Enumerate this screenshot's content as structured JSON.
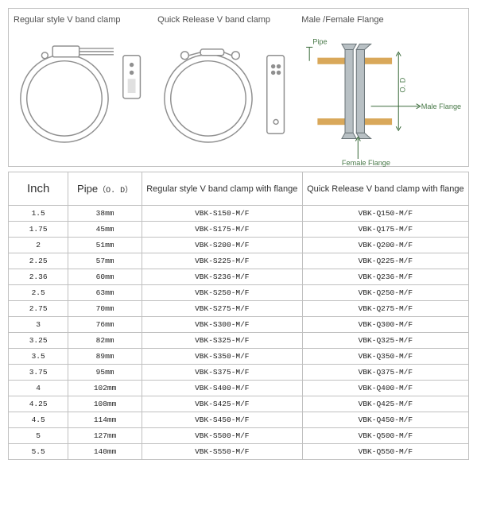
{
  "diagram": {
    "titles": {
      "regular": "Regular style V band clamp",
      "quick": "Quick Release V band clamp",
      "flange": "Male /Female Flange"
    },
    "flange_labels": {
      "pipe": "Pipe",
      "od": "O. D",
      "male": "Male Flange",
      "female": "Female Flange"
    },
    "colors": {
      "stroke": "#909090",
      "label": "#4a7a4a",
      "arrow": "#3b6b3b",
      "pipe": "#d9a85a"
    }
  },
  "table": {
    "headers": {
      "inch": "Inch",
      "pipe": "Pipe",
      "od_sub": "（O. D）",
      "regular": "Regular style V band clamp with flange",
      "quick": "Quick Release V band clamp with flange"
    },
    "rows": [
      {
        "inch": "1.5",
        "pipe": "38mm",
        "regular": "VBK-S150-M/F",
        "quick": "VBK-Q150-M/F"
      },
      {
        "inch": "1.75",
        "pipe": "45mm",
        "regular": "VBK-S175-M/F",
        "quick": "VBK-Q175-M/F"
      },
      {
        "inch": "2",
        "pipe": "51mm",
        "regular": "VBK-S200-M/F",
        "quick": "VBK-Q200-M/F"
      },
      {
        "inch": "2.25",
        "pipe": "57mm",
        "regular": "VBK-S225-M/F",
        "quick": "VBK-Q225-M/F"
      },
      {
        "inch": "2.36",
        "pipe": "60mm",
        "regular": "VBK-S236-M/F",
        "quick": "VBK-Q236-M/F"
      },
      {
        "inch": "2.5",
        "pipe": "63mm",
        "regular": "VBK-S250-M/F",
        "quick": "VBK-Q250-M/F"
      },
      {
        "inch": "2.75",
        "pipe": "70mm",
        "regular": "VBK-S275-M/F",
        "quick": "VBK-Q275-M/F"
      },
      {
        "inch": "3",
        "pipe": "76mm",
        "regular": "VBK-S300-M/F",
        "quick": "VBK-Q300-M/F"
      },
      {
        "inch": "3.25",
        "pipe": "82mm",
        "regular": "VBK-S325-M/F",
        "quick": "VBK-Q325-M/F"
      },
      {
        "inch": "3.5",
        "pipe": "89mm",
        "regular": "VBK-S350-M/F",
        "quick": "VBK-Q350-M/F"
      },
      {
        "inch": "3.75",
        "pipe": "95mm",
        "regular": "VBK-S375-M/F",
        "quick": "VBK-Q375-M/F"
      },
      {
        "inch": "4",
        "pipe": "102mm",
        "regular": "VBK-S400-M/F",
        "quick": "VBK-Q400-M/F"
      },
      {
        "inch": "4.25",
        "pipe": "108mm",
        "regular": "VBK-S425-M/F",
        "quick": "VBK-Q425-M/F"
      },
      {
        "inch": "4.5",
        "pipe": "114mm",
        "regular": "VBK-S450-M/F",
        "quick": "VBK-Q450-M/F"
      },
      {
        "inch": "5",
        "pipe": "127mm",
        "regular": "VBK-S500-M/F",
        "quick": "VBK-Q500-M/F"
      },
      {
        "inch": "5.5",
        "pipe": "140mm",
        "regular": "VBK-S550-M/F",
        "quick": "VBK-Q550-M/F"
      }
    ]
  }
}
